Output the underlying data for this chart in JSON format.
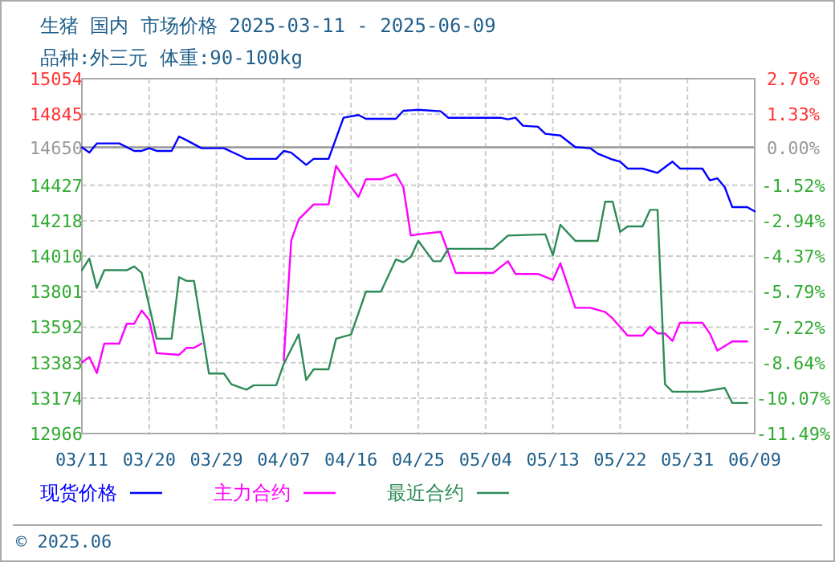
{
  "chart_data": {
    "type": "line",
    "title": "生猪 国内 市场价格 2025-03-11 - 2025-06-09",
    "subtitle": "品种:外三元 体重:90-100kg",
    "annotations": [
      "© 2025.06"
    ],
    "xlim": [
      "2025-03-11",
      "2025-06-09"
    ],
    "xticks": [
      {
        "value": "2025-03-11",
        "label": "03/11"
      },
      {
        "value": "2025-03-20",
        "label": "03/20"
      },
      {
        "value": "2025-03-29",
        "label": "03/29"
      },
      {
        "value": "2025-04-07",
        "label": "04/07"
      },
      {
        "value": "2025-04-16",
        "label": "04/16"
      },
      {
        "value": "2025-04-25",
        "label": "04/25"
      },
      {
        "value": "2025-05-04",
        "label": "05/04"
      },
      {
        "value": "2025-05-13",
        "label": "05/13"
      },
      {
        "value": "2025-05-22",
        "label": "05/22"
      },
      {
        "value": "2025-05-31",
        "label": "05/31"
      },
      {
        "value": "2025-06-09",
        "label": "06/09"
      }
    ],
    "ylim": [
      12966,
      15054
    ],
    "yticks": [
      12966,
      13174,
      13383,
      13592,
      13801,
      14010,
      14218,
      14427,
      14650,
      14845,
      15054
    ],
    "y2lim": [
      -11.49,
      2.76
    ],
    "y2ticks": [
      {
        "value": -11.49,
        "label": "-11.49%"
      },
      {
        "value": -10.07,
        "label": "-10.07%"
      },
      {
        "value": -8.64,
        "label": "-8.64%"
      },
      {
        "value": -7.22,
        "label": "-7.22%"
      },
      {
        "value": -5.79,
        "label": "-5.79%"
      },
      {
        "value": -4.37,
        "label": "-4.37%"
      },
      {
        "value": -2.94,
        "label": "-2.94%"
      },
      {
        "value": -1.52,
        "label": "-1.52%"
      },
      {
        "value": 0,
        "label": "0.00%"
      },
      {
        "value": 1.33,
        "label": "1.33%"
      },
      {
        "value": 2.76,
        "label": "2.76%"
      }
    ],
    "ref_lines": [
      {
        "axis": "y",
        "value": 14650,
        "color": "#999999"
      }
    ],
    "grid": true,
    "legend": "bottom",
    "marker": "none",
    "line_style": "solid",
    "series": [
      {
        "name": "现货价格",
        "color": "#0000ff",
        "x": [
          "2025-03-11",
          "2025-03-12",
          "2025-03-13",
          "2025-03-16",
          "2025-03-18",
          "2025-03-19",
          "2025-03-20",
          "2025-03-21",
          "2025-03-23",
          "2025-03-24",
          "2025-03-25",
          "2025-03-27",
          "2025-03-30",
          "2025-04-01",
          "2025-04-02",
          "2025-04-06",
          "2025-04-07",
          "2025-04-08",
          "2025-04-10",
          "2025-04-11",
          "2025-04-13",
          "2025-04-15",
          "2025-04-17",
          "2025-04-18",
          "2025-04-22",
          "2025-04-23",
          "2025-04-25",
          "2025-04-28",
          "2025-04-29",
          "2025-05-06",
          "2025-05-07",
          "2025-05-08",
          "2025-05-09",
          "2025-05-11",
          "2025-05-12",
          "2025-05-14",
          "2025-05-16",
          "2025-05-18",
          "2025-05-19",
          "2025-05-21",
          "2025-05-22",
          "2025-05-23",
          "2025-05-25",
          "2025-05-27",
          "2025-05-29",
          "2025-05-30",
          "2025-06-02",
          "2025-06-03",
          "2025-06-04",
          "2025-06-05",
          "2025-06-06",
          "2025-06-08",
          "2025-06-09"
        ],
        "values": [
          14650,
          14619,
          14673,
          14673,
          14629,
          14629,
          14645,
          14629,
          14629,
          14714,
          14692,
          14645,
          14645,
          14604,
          14582,
          14582,
          14629,
          14619,
          14547,
          14582,
          14582,
          14824,
          14840,
          14818,
          14818,
          14865,
          14871,
          14862,
          14824,
          14824,
          14815,
          14824,
          14777,
          14771,
          14730,
          14720,
          14651,
          14645,
          14613,
          14578,
          14566,
          14525,
          14525,
          14500,
          14566,
          14525,
          14525,
          14456,
          14468,
          14415,
          14298,
          14298,
          14273
        ]
      },
      {
        "name": "主力合约",
        "color": "#ff00ff",
        "x": [
          "2025-03-11",
          "2025-03-12",
          "2025-03-13",
          "2025-03-14",
          "2025-03-16",
          "2025-03-17",
          "2025-03-18",
          "2025-03-19",
          "2025-03-20",
          "2025-03-21",
          "2025-03-24",
          "2025-03-25",
          "2025-03-26",
          "2025-03-27",
          "2025-03-28",
          "2025-04-07",
          "2025-04-08",
          "2025-04-09",
          "2025-04-11",
          "2025-04-13",
          "2025-04-14",
          "2025-04-15",
          "2025-04-17",
          "2025-04-18",
          "2025-04-20",
          "2025-04-22",
          "2025-04-23",
          "2025-04-24",
          "2025-04-25",
          "2025-04-28",
          "2025-04-30",
          "2025-05-05",
          "2025-05-07",
          "2025-05-08",
          "2025-05-11",
          "2025-05-13",
          "2025-05-14",
          "2025-05-16",
          "2025-05-18",
          "2025-05-20",
          "2025-05-21",
          "2025-05-23",
          "2025-05-25",
          "2025-05-26",
          "2025-05-27",
          "2025-05-28",
          "2025-05-29",
          "2025-05-30",
          "2025-06-02",
          "2025-06-03",
          "2025-06-04",
          "2025-06-06",
          "2025-06-08"
        ],
        "values": [
          13385,
          13416,
          13322,
          13495,
          13495,
          13612,
          13612,
          13690,
          13634,
          13439,
          13429,
          13470,
          13470,
          13495,
          null,
          13398,
          14100,
          14226,
          14314,
          14314,
          14541,
          14478,
          14358,
          14462,
          14462,
          14493,
          14415,
          14131,
          14138,
          14153,
          13911,
          13911,
          13980,
          13905,
          13905,
          13870,
          13968,
          13706,
          13706,
          13681,
          13643,
          13542,
          13542,
          13596,
          13555,
          13555,
          13511,
          13618,
          13618,
          13555,
          13454,
          13508,
          13508
        ]
      },
      {
        "name": "最近合约",
        "color": "#2e8b57",
        "x": [
          "2025-03-11",
          "2025-03-12",
          "2025-03-13",
          "2025-03-14",
          "2025-03-17",
          "2025-03-18",
          "2025-03-19",
          "2025-03-21",
          "2025-03-23",
          "2025-03-24",
          "2025-03-25",
          "2025-03-26",
          "2025-03-28",
          "2025-03-30",
          "2025-03-31",
          "2025-04-02",
          "2025-04-03",
          "2025-04-06",
          "2025-04-07",
          "2025-04-09",
          "2025-04-10",
          "2025-04-11",
          "2025-04-13",
          "2025-04-14",
          "2025-04-16",
          "2025-04-18",
          "2025-04-20",
          "2025-04-22",
          "2025-04-23",
          "2025-04-24",
          "2025-04-25",
          "2025-04-27",
          "2025-04-28",
          "2025-04-29",
          "2025-05-05",
          "2025-05-07",
          "2025-05-12",
          "2025-05-13",
          "2025-05-14",
          "2025-05-16",
          "2025-05-19",
          "2025-05-20",
          "2025-05-21",
          "2025-05-22",
          "2025-05-23",
          "2025-05-25",
          "2025-05-26",
          "2025-05-27",
          "2025-05-28",
          "2025-05-29",
          "2025-06-02",
          "2025-06-05",
          "2025-06-06",
          "2025-06-08"
        ],
        "values": [
          13927,
          13996,
          13823,
          13927,
          13927,
          13949,
          13911,
          13524,
          13524,
          13886,
          13864,
          13864,
          13319,
          13319,
          13256,
          13224,
          13250,
          13250,
          13376,
          13549,
          13281,
          13344,
          13344,
          13524,
          13549,
          13801,
          13801,
          13990,
          13974,
          14005,
          14100,
          13980,
          13980,
          14053,
          14053,
          14131,
          14138,
          14015,
          14194,
          14100,
          14100,
          14330,
          14330,
          14153,
          14185,
          14185,
          14282,
          14282,
          13256,
          13212,
          13212,
          13234,
          13146,
          13146
        ]
      }
    ]
  }
}
